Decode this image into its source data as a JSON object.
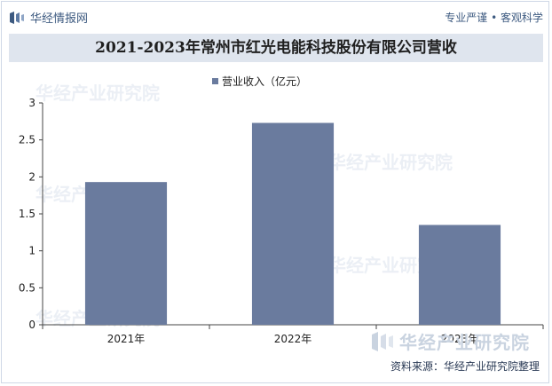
{
  "header": {
    "brand_name": "华经情报网",
    "motto": "专业严谨 • 客观科学"
  },
  "chart_data": {
    "type": "bar",
    "title": "2021-2023年常州市红光电能科技股份有限公司营收",
    "categories": [
      "2021年",
      "2022年",
      "2023年"
    ],
    "series": [
      {
        "name": "营业收入（亿元）",
        "values": [
          1.93,
          2.73,
          1.35
        ]
      }
    ],
    "yticks": [
      "0",
      "0.5",
      "1",
      "1.5",
      "2",
      "2.5",
      "3"
    ],
    "ylim": [
      0,
      3
    ],
    "legend_position": "top",
    "grid": false,
    "bar_color": "#6a7b9e"
  },
  "footer": {
    "source": "资料来源：华经产业研究院整理",
    "watermark": "华经产业研究院"
  }
}
